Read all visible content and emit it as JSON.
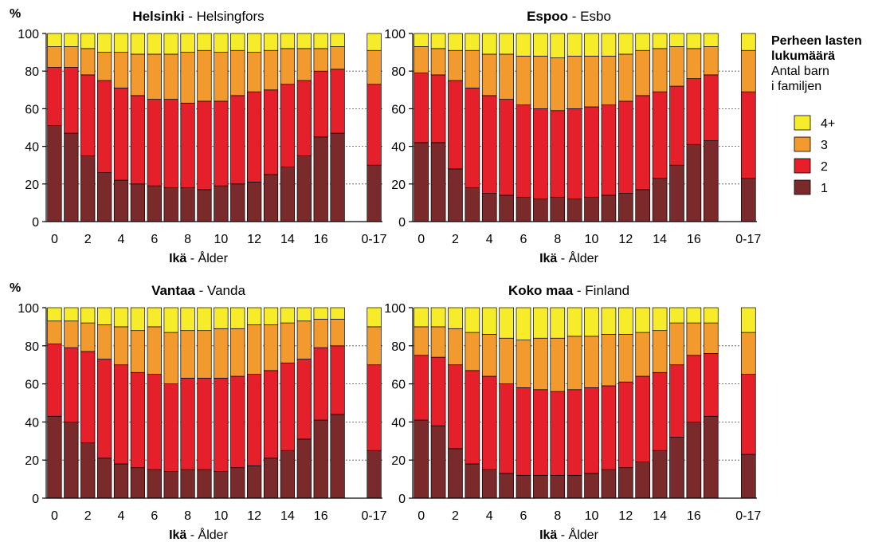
{
  "legend": {
    "title_bold": "Perheen lasten",
    "title_bold2": "lukumäärä",
    "title_line3": "Antal barn",
    "title_line4": "i familjen",
    "placement": "right",
    "items": [
      {
        "label": "4+",
        "color": "#f7ec2a"
      },
      {
        "label": "3",
        "color": "#f29a2e"
      },
      {
        "label": "2",
        "color": "#e5202a"
      },
      {
        "label": "1",
        "color": "#7b2a2c"
      }
    ]
  },
  "chart_data": [
    {
      "type": "bar",
      "stacked": true,
      "title_bold": "Helsinki",
      "title_rest": " - Helsingfors",
      "ylabel": "%",
      "xlabel_bold": "Ikä",
      "xlabel_rest": " - Ålder",
      "ylim": [
        0,
        100
      ],
      "yticks": [
        "0",
        "20",
        "40",
        "60",
        "80",
        "100"
      ],
      "categories": [
        "0",
        "1",
        "2",
        "3",
        "4",
        "5",
        "6",
        "7",
        "8",
        "9",
        "10",
        "11",
        "12",
        "13",
        "14",
        "15",
        "16",
        "17",
        "0-17"
      ],
      "xtick_labels": [
        "0",
        "2",
        "4",
        "6",
        "8",
        "10",
        "12",
        "14",
        "16",
        "0-17"
      ],
      "series": [
        {
          "name": "1",
          "values": [
            51,
            47,
            35,
            26,
            22,
            20,
            19,
            18,
            18,
            17,
            19,
            20,
            21,
            25,
            29,
            35,
            45,
            47,
            30
          ]
        },
        {
          "name": "2",
          "values": [
            31,
            35,
            43,
            49,
            49,
            47,
            46,
            47,
            45,
            47,
            45,
            47,
            48,
            45,
            44,
            40,
            35,
            34,
            43
          ]
        },
        {
          "name": "3",
          "values": [
            11,
            11,
            14,
            15,
            19,
            22,
            24,
            24,
            27,
            27,
            26,
            24,
            21,
            21,
            19,
            17,
            12,
            12,
            18
          ]
        },
        {
          "name": "4+",
          "values": [
            7,
            7,
            8,
            10,
            10,
            11,
            11,
            11,
            10,
            9,
            10,
            9,
            10,
            9,
            8,
            8,
            8,
            7,
            9
          ]
        }
      ]
    },
    {
      "type": "bar",
      "stacked": true,
      "title_bold": "Espoo",
      "title_rest": " - Esbo",
      "ylabel": "",
      "xlabel_bold": "Ikä",
      "xlabel_rest": " - Ålder",
      "ylim": [
        0,
        100
      ],
      "yticks": [
        "0",
        "20",
        "40",
        "60",
        "80",
        "100"
      ],
      "categories": [
        "0",
        "1",
        "2",
        "3",
        "4",
        "5",
        "6",
        "7",
        "8",
        "9",
        "10",
        "11",
        "12",
        "13",
        "14",
        "15",
        "16",
        "17",
        "0-17"
      ],
      "xtick_labels": [
        "0",
        "2",
        "4",
        "6",
        "8",
        "10",
        "12",
        "14",
        "16",
        "0-17"
      ],
      "series": [
        {
          "name": "1",
          "values": [
            42,
            42,
            28,
            18,
            15,
            14,
            13,
            12,
            13,
            12,
            13,
            14,
            15,
            17,
            23,
            30,
            41,
            43,
            23
          ]
        },
        {
          "name": "2",
          "values": [
            37,
            36,
            47,
            53,
            52,
            51,
            49,
            48,
            46,
            48,
            48,
            48,
            49,
            50,
            46,
            42,
            35,
            35,
            46
          ]
        },
        {
          "name": "3",
          "values": [
            14,
            14,
            16,
            20,
            22,
            24,
            26,
            28,
            28,
            28,
            27,
            26,
            25,
            24,
            23,
            21,
            16,
            15,
            22
          ]
        },
        {
          "name": "4+",
          "values": [
            7,
            8,
            9,
            9,
            11,
            11,
            12,
            12,
            13,
            12,
            12,
            12,
            11,
            9,
            8,
            7,
            8,
            7,
            9
          ]
        }
      ]
    },
    {
      "type": "bar",
      "stacked": true,
      "title_bold": "Vantaa",
      "title_rest": " - Vanda",
      "ylabel": "%",
      "xlabel_bold": "Ikä",
      "xlabel_rest": " - Ålder",
      "ylim": [
        0,
        100
      ],
      "yticks": [
        "0",
        "20",
        "40",
        "60",
        "80",
        "100"
      ],
      "categories": [
        "0",
        "1",
        "2",
        "3",
        "4",
        "5",
        "6",
        "7",
        "8",
        "9",
        "10",
        "11",
        "12",
        "13",
        "14",
        "15",
        "16",
        "17",
        "0-17"
      ],
      "xtick_labels": [
        "0",
        "2",
        "4",
        "6",
        "8",
        "10",
        "12",
        "14",
        "16",
        "0-17"
      ],
      "series": [
        {
          "name": "1",
          "values": [
            43,
            40,
            29,
            21,
            18,
            16,
            15,
            14,
            15,
            15,
            14,
            16,
            17,
            21,
            25,
            31,
            41,
            44,
            25
          ]
        },
        {
          "name": "2",
          "values": [
            38,
            39,
            48,
            52,
            52,
            50,
            50,
            46,
            48,
            48,
            49,
            48,
            48,
            46,
            46,
            42,
            38,
            36,
            45
          ]
        },
        {
          "name": "3",
          "values": [
            12,
            14,
            15,
            18,
            20,
            22,
            25,
            27,
            25,
            25,
            26,
            25,
            26,
            24,
            21,
            20,
            15,
            14,
            20
          ]
        },
        {
          "name": "4+",
          "values": [
            7,
            7,
            8,
            9,
            10,
            12,
            10,
            13,
            12,
            12,
            11,
            11,
            9,
            9,
            8,
            7,
            6,
            6,
            10
          ]
        }
      ]
    },
    {
      "type": "bar",
      "stacked": true,
      "title_bold": "Koko maa",
      "title_rest": " - Finland",
      "ylabel": "",
      "xlabel_bold": "Ikä",
      "xlabel_rest": " - Ålder",
      "ylim": [
        0,
        100
      ],
      "yticks": [
        "0",
        "20",
        "40",
        "60",
        "80",
        "100"
      ],
      "categories": [
        "0",
        "1",
        "2",
        "3",
        "4",
        "5",
        "6",
        "7",
        "8",
        "9",
        "10",
        "11",
        "12",
        "13",
        "14",
        "15",
        "16",
        "17",
        "0-17"
      ],
      "xtick_labels": [
        "0",
        "2",
        "4",
        "6",
        "8",
        "10",
        "12",
        "14",
        "16",
        "0-17"
      ],
      "series": [
        {
          "name": "1",
          "values": [
            41,
            38,
            26,
            18,
            15,
            13,
            12,
            12,
            12,
            12,
            13,
            15,
            16,
            19,
            25,
            32,
            40,
            43,
            23
          ]
        },
        {
          "name": "2",
          "values": [
            34,
            36,
            44,
            49,
            49,
            47,
            46,
            45,
            44,
            45,
            45,
            44,
            45,
            45,
            41,
            38,
            35,
            33,
            42
          ]
        },
        {
          "name": "3",
          "values": [
            15,
            16,
            19,
            20,
            22,
            24,
            25,
            27,
            28,
            28,
            27,
            27,
            25,
            23,
            22,
            22,
            17,
            16,
            22
          ]
        },
        {
          "name": "4+",
          "values": [
            10,
            10,
            11,
            13,
            14,
            16,
            17,
            16,
            16,
            15,
            15,
            14,
            14,
            13,
            12,
            8,
            8,
            8,
            13
          ]
        }
      ]
    }
  ]
}
